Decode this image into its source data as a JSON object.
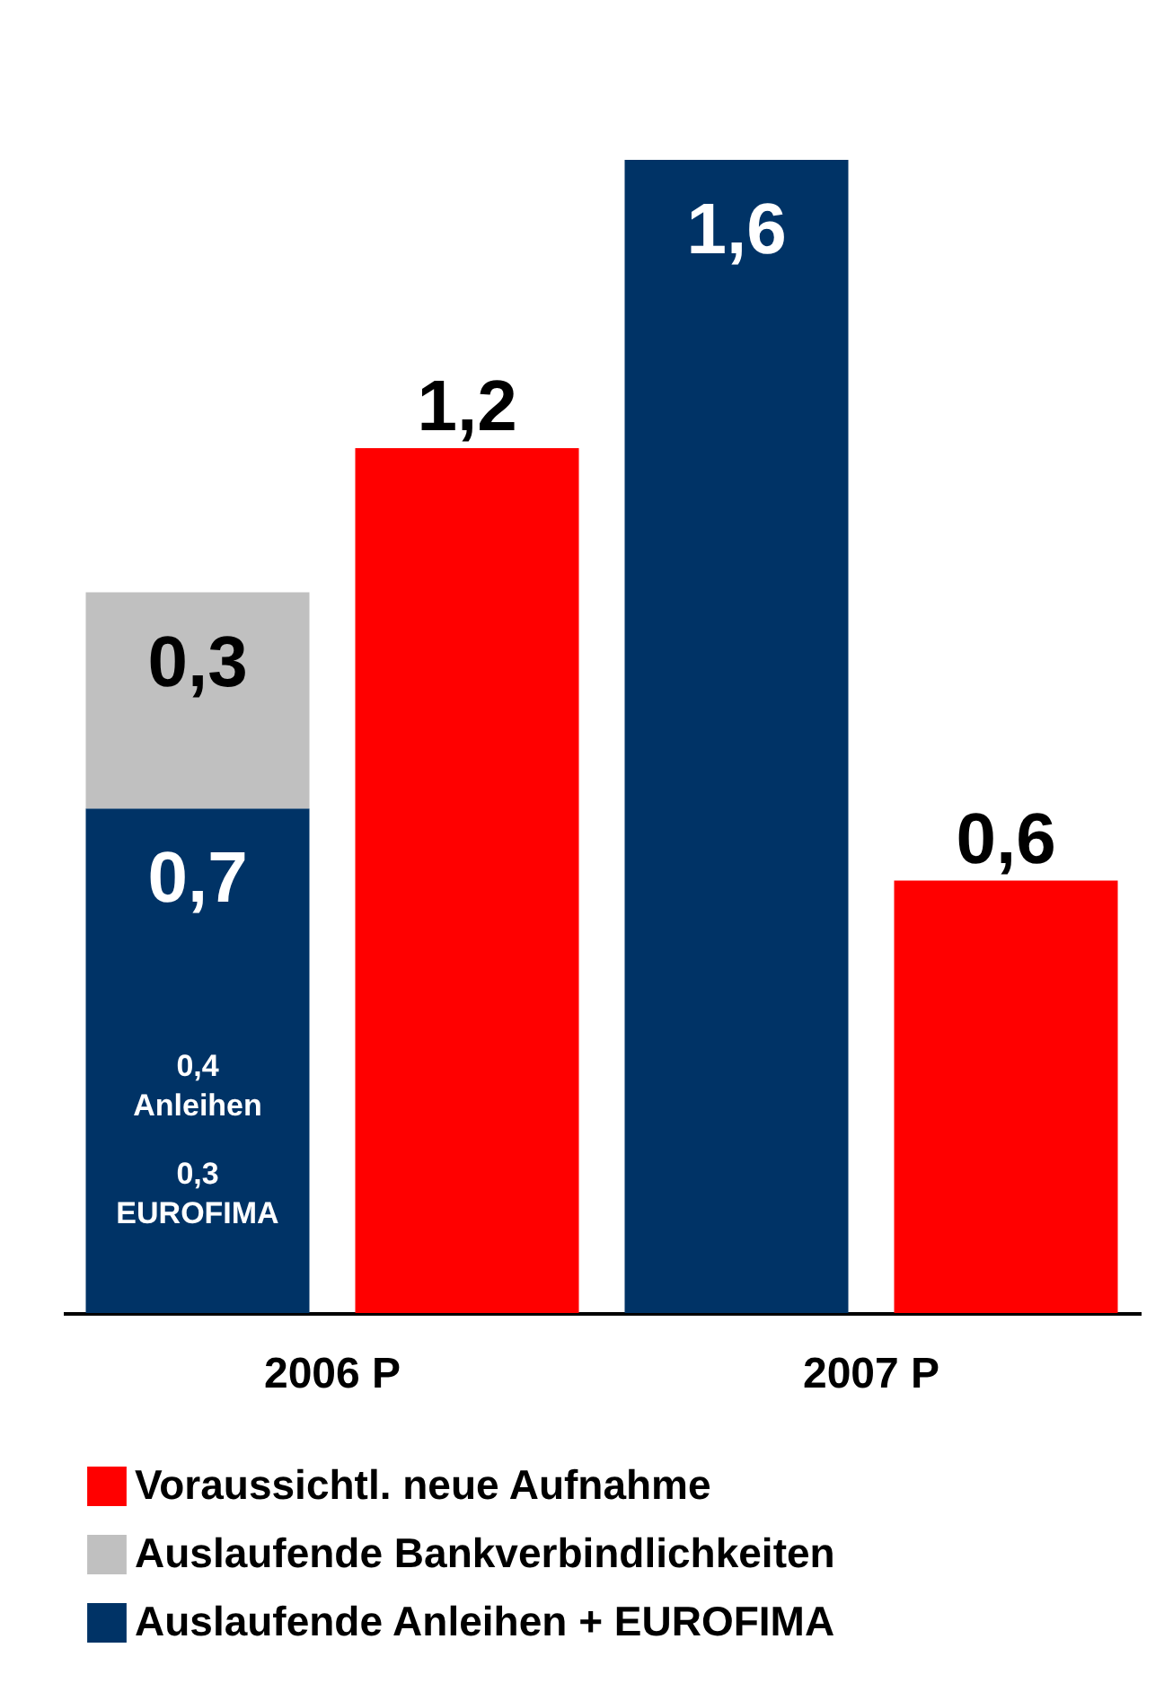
{
  "chart_data": {
    "type": "bar",
    "stacked": true,
    "categories": [
      "2006 P",
      null,
      "2007 P",
      null
    ],
    "series": [
      {
        "name": "Auslaufende Anleihen + EUROFIMA",
        "color": "#003366",
        "values": [
          0.7,
          null,
          1.6,
          null
        ],
        "value_labels": [
          "0,7",
          null,
          "1,6",
          null
        ]
      },
      {
        "name": "Auslaufende Bankverbindlichkeiten",
        "color": "#c0c0c0",
        "values": [
          0.3,
          null,
          null,
          null
        ],
        "value_labels": [
          "0,3",
          null,
          null,
          null
        ]
      },
      {
        "name": "Voraussichtl. neue Aufnahme",
        "color": "#ff0000",
        "values": [
          null,
          1.2,
          null,
          0.6
        ],
        "value_labels": [
          null,
          "1,2",
          null,
          "0,6"
        ]
      }
    ],
    "annotations": [
      "0,4\nAnleihen",
      "0,3\nEUROFIMA"
    ],
    "legend": "bottom",
    "grid": false
  }
}
